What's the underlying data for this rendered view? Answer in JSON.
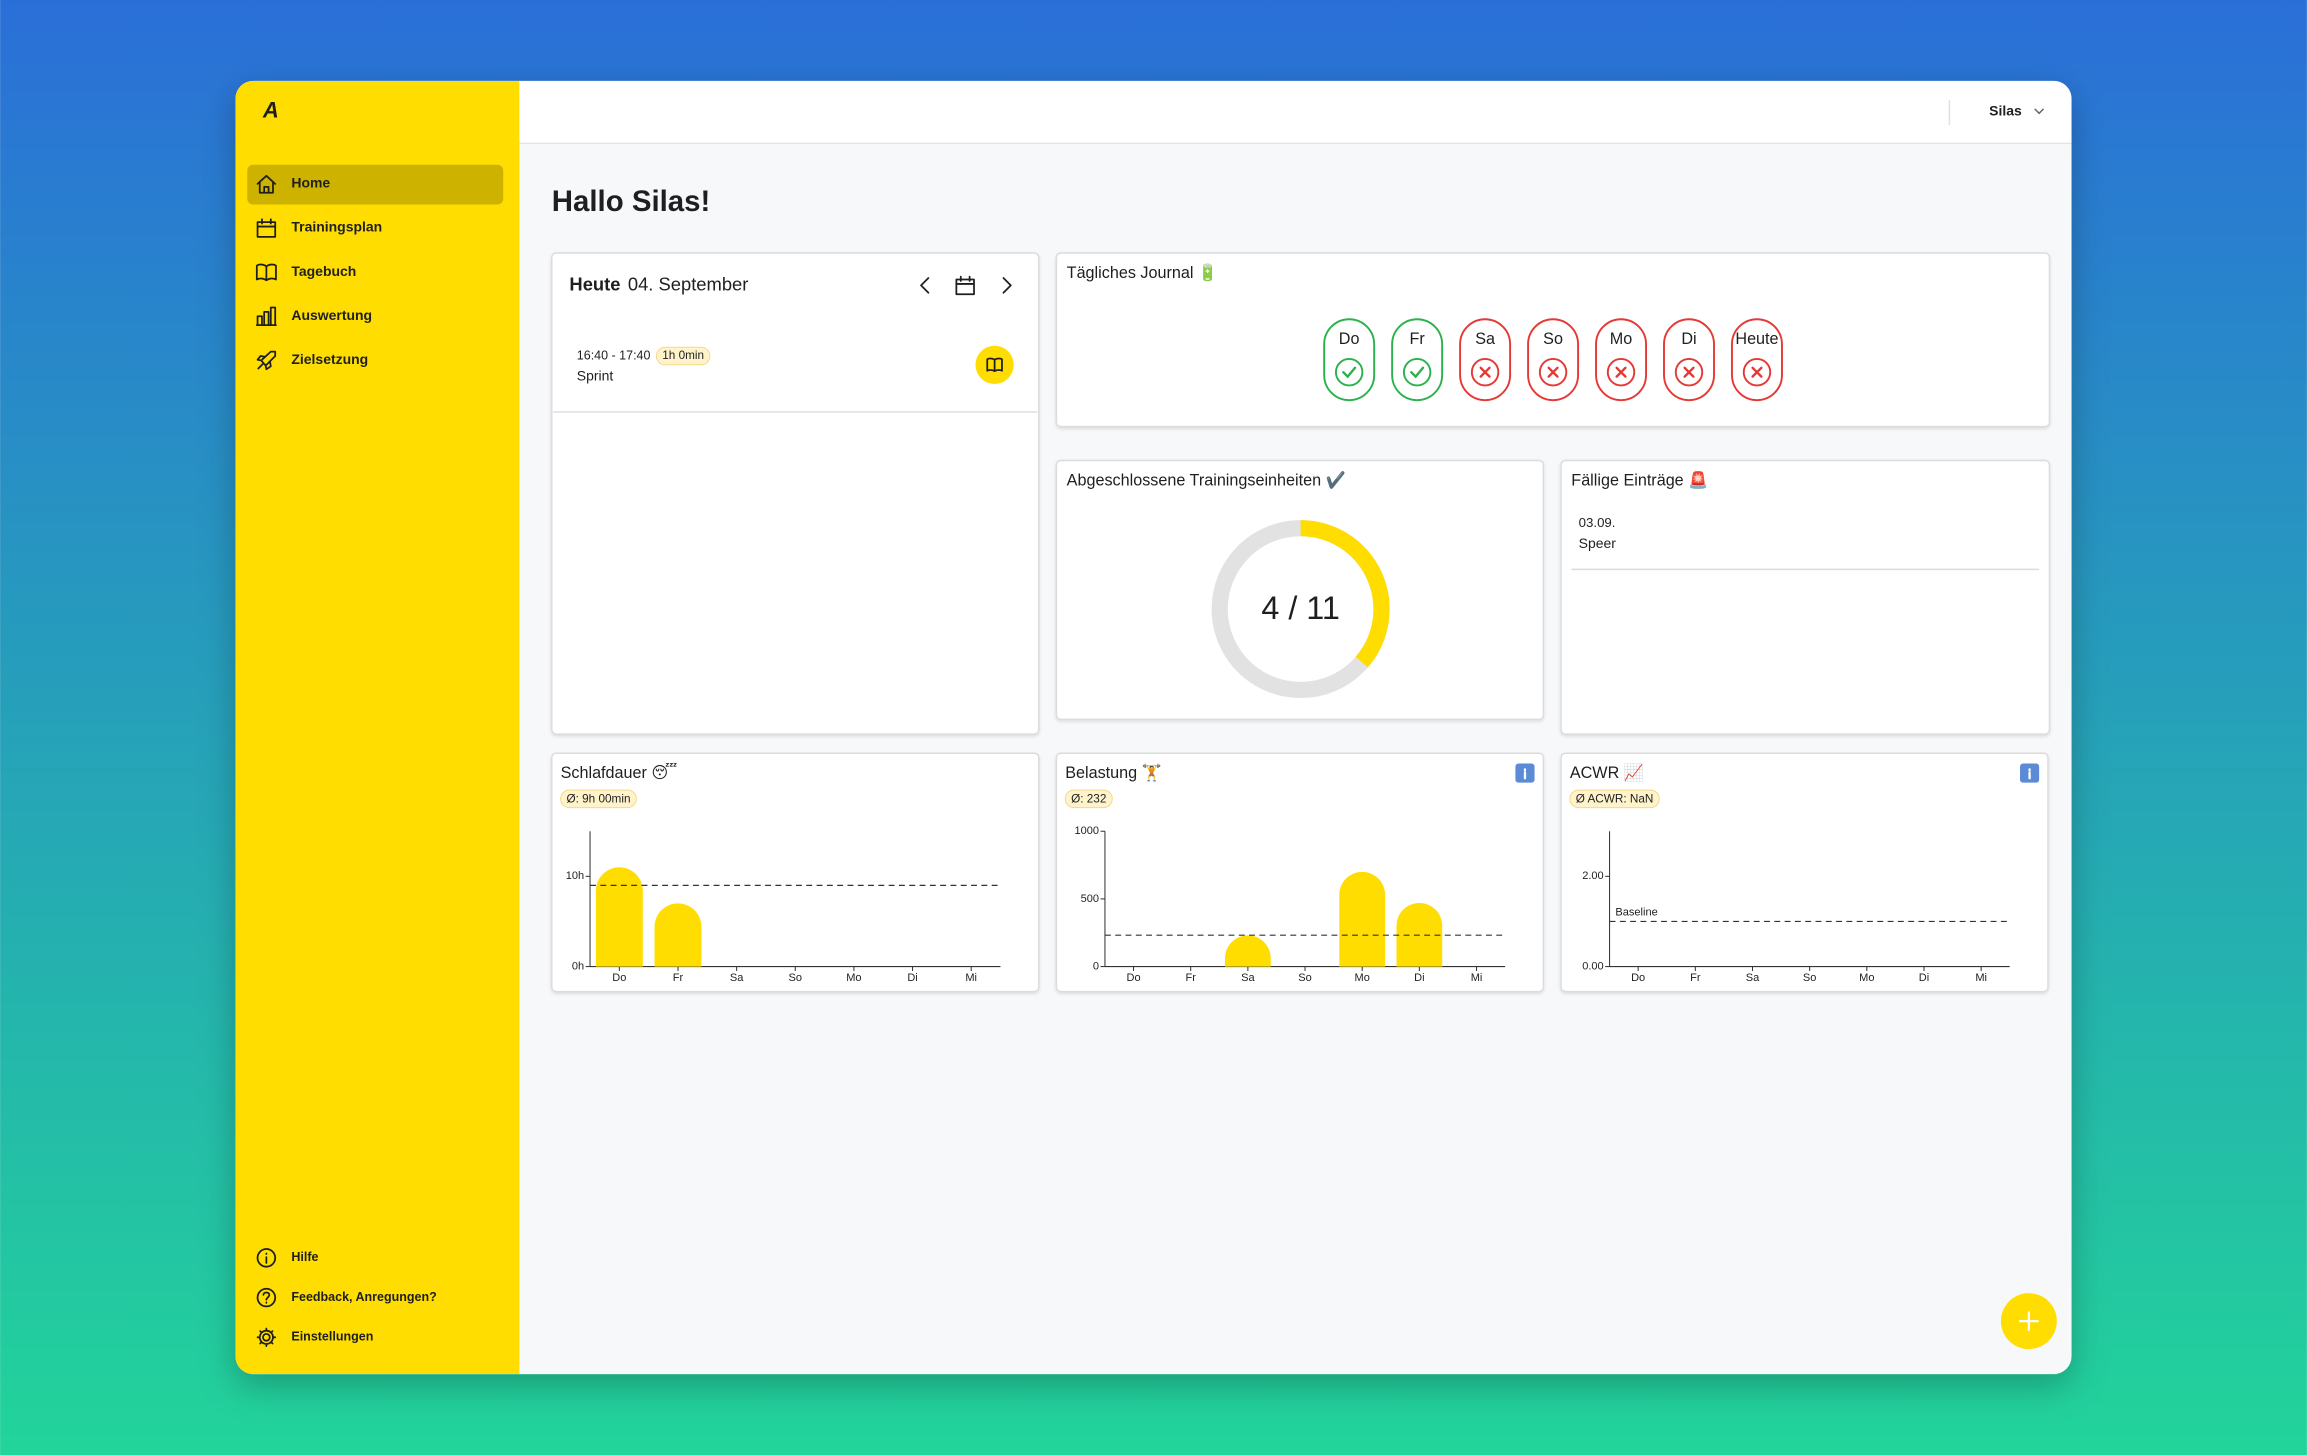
{
  "sidebar": {
    "logo": "A",
    "nav": [
      "Home",
      "Trainingsplan",
      "Tagebuch",
      "Auswertung",
      "Zielsetzung"
    ],
    "footer": [
      "Hilfe",
      "Feedback, Anregungen?",
      "Einstellungen"
    ]
  },
  "header": {
    "user": "Silas"
  },
  "greeting": "Hallo Silas!",
  "today": {
    "label": "Heute",
    "date": "04. September",
    "entries": [
      {
        "time": "16:40 - 17:40",
        "duration": "1h 0min",
        "name": "Sprint"
      }
    ]
  },
  "journal": {
    "title": "Tägliches Journal 🔋",
    "days": [
      {
        "label": "Do",
        "done": true
      },
      {
        "label": "Fr",
        "done": true
      },
      {
        "label": "Sa",
        "done": false
      },
      {
        "label": "So",
        "done": false
      },
      {
        "label": "Mo",
        "done": false
      },
      {
        "label": "Di",
        "done": false
      },
      {
        "label": "Heute",
        "done": false
      }
    ]
  },
  "completed": {
    "title": "Abgeschlossene Trainingseinheiten ✔️",
    "label": "4 / 11",
    "done": 4,
    "total": 11
  },
  "due": {
    "title": "Fällige Einträge 🚨",
    "entries": [
      {
        "date": "03.09.",
        "name": "Speer"
      }
    ]
  },
  "chart_data": [
    {
      "type": "bar",
      "title": "Schlafdauer 😴",
      "badge": "Ø: 9h 00min",
      "categories": [
        "Do",
        "Fr",
        "Sa",
        "So",
        "Mo",
        "Di",
        "Mi"
      ],
      "values": [
        11,
        7,
        null,
        null,
        null,
        null,
        null
      ],
      "color": "#ffdd00",
      "ylim": [
        0,
        15
      ],
      "yticks": [
        {
          "value": 0,
          "label": "0h"
        },
        {
          "value": 10,
          "label": "10h"
        }
      ],
      "reference": 9
    },
    {
      "type": "bar",
      "title": "Belastung 🏋️",
      "badge": "Ø: 232",
      "categories": [
        "Do",
        "Fr",
        "Sa",
        "So",
        "Mo",
        "Di",
        "Mi"
      ],
      "values": [
        null,
        null,
        230,
        null,
        700,
        470,
        null
      ],
      "color": "#ffdd00",
      "ylim": [
        0,
        1000
      ],
      "yticks": [
        0,
        500,
        1000
      ],
      "reference": 232
    },
    {
      "type": "bar",
      "title": "ACWR 📈",
      "badge": "Ø ACWR: NaN",
      "categories": [
        "Do",
        "Fr",
        "Sa",
        "So",
        "Mo",
        "Di",
        "Mi"
      ],
      "values": [
        null,
        null,
        null,
        null,
        null,
        null,
        null
      ],
      "color": "#ffdd00",
      "ylim": [
        0,
        3
      ],
      "yticks": [
        {
          "value": 0,
          "label": "0.00"
        },
        {
          "value": 2,
          "label": "2.00"
        }
      ],
      "reference": 1,
      "reference_label": "Baseline"
    }
  ]
}
